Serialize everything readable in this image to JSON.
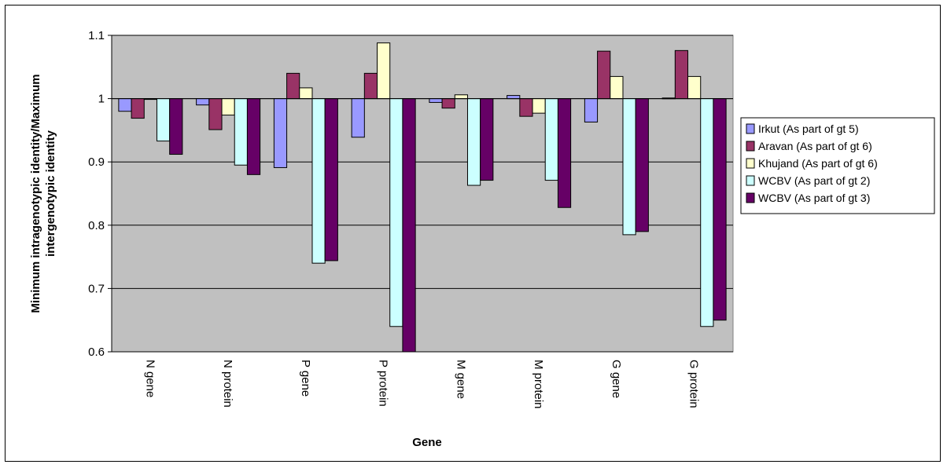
{
  "chart_data": {
    "type": "bar",
    "title": "",
    "xlabel": "Gene",
    "ylabel_lines": [
      "Minimum intragenotypic identity/Maximum",
      "intergenotypic identity"
    ],
    "ylim": [
      0.6,
      1.1
    ],
    "baseline": 1.0,
    "yticks": [
      "0.6",
      "0.7",
      "0.8",
      "0.9",
      "1",
      "1.1"
    ],
    "categories": [
      "N gene",
      "N protein",
      "P gene",
      "P protein",
      "M gene",
      "M protein",
      "G gene",
      "G protein"
    ],
    "series": [
      {
        "name": "Irkut (As part of gt 5)",
        "color": "#9999ff",
        "values": [
          0.98,
          0.99,
          0.891,
          0.939,
          0.994,
          1.005,
          0.963,
          1.001
        ]
      },
      {
        "name": "Aravan (As part of gt 6)",
        "color": "#993366",
        "values": [
          0.969,
          0.951,
          1.04,
          1.04,
          0.985,
          0.972,
          1.075,
          1.076
        ]
      },
      {
        "name": "Khujand (As part of gt 6)",
        "color": "#ffffcc",
        "values": [
          1.0,
          0.974,
          1.017,
          1.088,
          1.006,
          0.977,
          1.035,
          1.035
        ]
      },
      {
        "name": "WCBV (As part of gt 2)",
        "color": "#ccffff",
        "values": [
          0.933,
          0.895,
          0.74,
          0.64,
          0.863,
          0.871,
          0.785,
          0.64
        ]
      },
      {
        "name": "WCBV (As part of gt 3)",
        "color": "#660066",
        "values": [
          0.912,
          0.88,
          0.744,
          0.592,
          0.871,
          0.828,
          0.79,
          0.65
        ]
      }
    ],
    "grid": true,
    "legend_position": "right",
    "plot_background": "#c0c0c0"
  }
}
